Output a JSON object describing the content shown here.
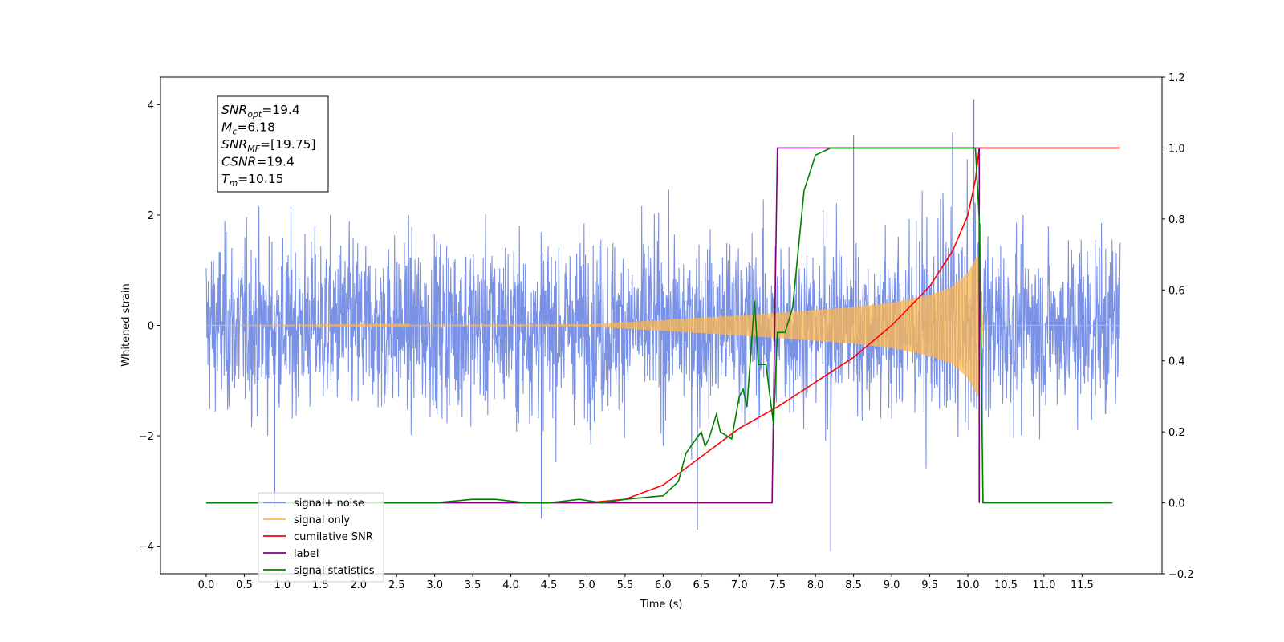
{
  "chart_data": {
    "type": "line",
    "xlabel": "Time (s)",
    "ylabel_left": "Whitened strain",
    "ylabel_right": "",
    "xlim": [
      -0.6,
      12.55
    ],
    "ylim_left": [
      -4.5,
      4.5
    ],
    "ylim_right": [
      -0.2,
      1.2
    ],
    "x_ticks": [
      "0.0",
      "0.5",
      "1.0",
      "1.5",
      "2.0",
      "2.5",
      "3.0",
      "3.5",
      "4.0",
      "4.5",
      "5.0",
      "5.5",
      "6.0",
      "6.5",
      "7.0",
      "7.5",
      "8.0",
      "8.5",
      "9.0",
      "9.5",
      "10.0",
      "10.5",
      "11.0",
      "11.5"
    ],
    "y_left_ticks": [
      "4",
      "2",
      "0",
      "−2",
      "−4"
    ],
    "y_right_ticks": [
      "1.2",
      "1.0",
      "0.8",
      "0.6",
      "0.4",
      "0.2",
      "0.0",
      "−0.2"
    ],
    "grid": false,
    "legend_position": "lower-left",
    "legend": [
      {
        "label": "signal+ noise",
        "color": "#6b86e3"
      },
      {
        "label": "signal only",
        "color": "#ffb74d"
      },
      {
        "label": "cumilative SNR",
        "color": "#ff0000"
      },
      {
        "label": "label",
        "color": "#800080"
      },
      {
        "label": "signal statistics",
        "color": "#008000"
      }
    ],
    "info_box": [
      {
        "base": "SNR",
        "sub": "opt",
        "value": "=19.4"
      },
      {
        "base": "M",
        "sub": "c",
        "value": "=6.18"
      },
      {
        "base": "SNR",
        "sub": "MF",
        "value": "=[19.75]"
      },
      {
        "base": "CSNR",
        "sub": "",
        "value": "=19.4"
      },
      {
        "base": "T",
        "sub": "m",
        "value": "=10.15"
      }
    ],
    "series": [
      {
        "name": "signal+ noise",
        "axis": "left",
        "color": "#6b86e3",
        "x_range": [
          0.0,
          12.0
        ],
        "noise_band": [
          -3.3,
          3.3
        ],
        "extremes": [
          [
            0.9,
            -3.3
          ],
          [
            4.4,
            -3.5
          ],
          [
            6.45,
            -3.7
          ],
          [
            8.2,
            -4.1
          ],
          [
            10.08,
            4.1
          ],
          [
            9.8,
            3.5
          ],
          [
            8.5,
            3.45
          ]
        ]
      },
      {
        "name": "signal only",
        "axis": "left",
        "color": "#ffb74d",
        "x_range": [
          0.0,
          12.0
        ],
        "envelope": {
          "x": [
            0.0,
            5.0,
            6.0,
            7.0,
            7.5,
            8.0,
            8.5,
            9.0,
            9.5,
            9.8,
            10.0,
            10.1,
            10.15,
            10.2,
            12.0
          ],
          "amplitude": [
            0.0,
            0.02,
            0.1,
            0.18,
            0.23,
            0.28,
            0.33,
            0.41,
            0.55,
            0.7,
            0.95,
            1.2,
            1.3,
            0.0,
            0.0
          ]
        }
      },
      {
        "name": "cumilative SNR",
        "axis": "right",
        "color": "#ff0000",
        "x": [
          5.0,
          5.5,
          6.0,
          6.5,
          7.0,
          7.5,
          8.0,
          8.5,
          9.0,
          9.5,
          9.8,
          10.0,
          10.1,
          10.15,
          12.0
        ],
        "y": [
          0.0,
          0.01,
          0.05,
          0.13,
          0.21,
          0.27,
          0.34,
          0.41,
          0.5,
          0.61,
          0.71,
          0.81,
          0.91,
          1.0,
          1.0
        ]
      },
      {
        "name": "label",
        "axis": "right",
        "color": "#800080",
        "x": [
          0.0,
          7.43,
          7.5,
          10.15,
          10.15
        ],
        "y": [
          0.0,
          0.0,
          1.0,
          1.0,
          0.0
        ]
      },
      {
        "name": "signal statistics",
        "axis": "right",
        "color": "#008000",
        "x": [
          0.0,
          3.0,
          3.5,
          3.8,
          4.2,
          4.5,
          4.9,
          5.2,
          5.5,
          6.0,
          6.2,
          6.3,
          6.5,
          6.55,
          6.6,
          6.7,
          6.75,
          6.9,
          7.0,
          7.05,
          7.1,
          7.2,
          7.25,
          7.35,
          7.45,
          7.5,
          7.6,
          7.7,
          7.85,
          8.0,
          8.2,
          10.1,
          10.15,
          10.2,
          11.9
        ],
        "y": [
          0.0,
          0.0,
          0.01,
          0.01,
          0.0,
          0.0,
          0.01,
          0.0,
          0.01,
          0.02,
          0.06,
          0.14,
          0.2,
          0.16,
          0.18,
          0.25,
          0.2,
          0.18,
          0.3,
          0.32,
          0.27,
          0.57,
          0.39,
          0.39,
          0.22,
          0.48,
          0.48,
          0.55,
          0.88,
          0.98,
          1.0,
          1.0,
          0.8,
          0.0,
          0.0
        ]
      }
    ]
  }
}
